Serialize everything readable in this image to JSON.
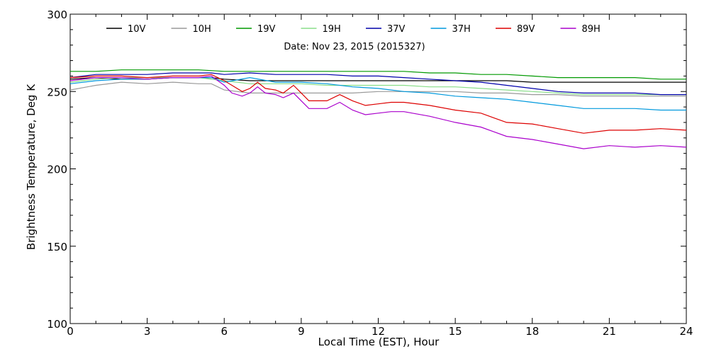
{
  "chart_data": {
    "type": "line",
    "title": "",
    "annotation": "Date: Nov 23, 2015 (2015327)",
    "xlabel": "Local Time (EST), Hour",
    "ylabel": "Brightness Temperature, Deg K",
    "xlim": [
      0,
      24
    ],
    "ylim": [
      100,
      300
    ],
    "xticks": [
      0,
      3,
      6,
      9,
      12,
      15,
      18,
      21,
      24
    ],
    "yticks": [
      100,
      150,
      200,
      250,
      300
    ],
    "grid": false,
    "legend_position": "top",
    "series": [
      {
        "name": "10V",
        "color": "#000000",
        "points": [
          [
            0,
            258
          ],
          [
            1,
            259
          ],
          [
            2,
            258
          ],
          [
            3,
            258
          ],
          [
            4,
            259
          ],
          [
            5,
            259
          ],
          [
            5.5,
            259
          ],
          [
            6,
            258
          ],
          [
            7,
            257
          ],
          [
            8,
            257
          ],
          [
            9,
            257
          ],
          [
            10,
            257
          ],
          [
            11,
            257
          ],
          [
            12,
            257
          ],
          [
            13,
            257
          ],
          [
            14,
            257
          ],
          [
            15,
            257
          ],
          [
            16,
            257
          ],
          [
            17,
            257
          ],
          [
            18,
            256
          ],
          [
            19,
            256
          ],
          [
            20,
            256
          ],
          [
            21,
            256
          ],
          [
            22,
            256
          ],
          [
            23,
            256
          ],
          [
            24,
            256
          ]
        ]
      },
      {
        "name": "10H",
        "color": "#999999",
        "points": [
          [
            0,
            251
          ],
          [
            1,
            254
          ],
          [
            2,
            256
          ],
          [
            3,
            255
          ],
          [
            4,
            256
          ],
          [
            5,
            255
          ],
          [
            5.5,
            255
          ],
          [
            6,
            251
          ],
          [
            7,
            249
          ],
          [
            8,
            249
          ],
          [
            9,
            249
          ],
          [
            10,
            249
          ],
          [
            11,
            249
          ],
          [
            12,
            250
          ],
          [
            13,
            250
          ],
          [
            14,
            250
          ],
          [
            15,
            250
          ],
          [
            16,
            249
          ],
          [
            17,
            249
          ],
          [
            18,
            248
          ],
          [
            19,
            248
          ],
          [
            20,
            247
          ],
          [
            21,
            247
          ],
          [
            22,
            247
          ],
          [
            23,
            247
          ],
          [
            24,
            247
          ]
        ]
      },
      {
        "name": "19V",
        "color": "#009900",
        "points": [
          [
            0,
            263
          ],
          [
            1,
            263
          ],
          [
            2,
            264
          ],
          [
            3,
            264
          ],
          [
            4,
            264
          ],
          [
            5,
            264
          ],
          [
            6,
            263
          ],
          [
            7,
            263
          ],
          [
            8,
            263
          ],
          [
            9,
            263
          ],
          [
            10,
            263
          ],
          [
            11,
            263
          ],
          [
            12,
            263
          ],
          [
            13,
            263
          ],
          [
            14,
            262
          ],
          [
            15,
            262
          ],
          [
            16,
            261
          ],
          [
            17,
            261
          ],
          [
            18,
            260
          ],
          [
            19,
            259
          ],
          [
            20,
            259
          ],
          [
            21,
            259
          ],
          [
            22,
            259
          ],
          [
            23,
            258
          ],
          [
            24,
            258
          ]
        ]
      },
      {
        "name": "19H",
        "color": "#88dd88",
        "points": [
          [
            0,
            256
          ],
          [
            1,
            258
          ],
          [
            2,
            259
          ],
          [
            3,
            259
          ],
          [
            4,
            259
          ],
          [
            5,
            259
          ],
          [
            6,
            257
          ],
          [
            7,
            255
          ],
          [
            8,
            255
          ],
          [
            9,
            255
          ],
          [
            10,
            254
          ],
          [
            11,
            254
          ],
          [
            12,
            254
          ],
          [
            13,
            254
          ],
          [
            14,
            253
          ],
          [
            15,
            253
          ],
          [
            16,
            252
          ],
          [
            17,
            251
          ],
          [
            18,
            250
          ],
          [
            19,
            249
          ],
          [
            20,
            248
          ],
          [
            21,
            248
          ],
          [
            22,
            248
          ],
          [
            23,
            248
          ],
          [
            24,
            248
          ]
        ]
      },
      {
        "name": "37V",
        "color": "#0000aa",
        "points": [
          [
            0,
            259
          ],
          [
            1,
            261
          ],
          [
            2,
            261
          ],
          [
            3,
            261
          ],
          [
            4,
            262
          ],
          [
            5,
            262
          ],
          [
            5.5,
            262
          ],
          [
            6,
            261
          ],
          [
            7,
            262
          ],
          [
            8,
            261
          ],
          [
            9,
            261
          ],
          [
            10,
            261
          ],
          [
            11,
            260
          ],
          [
            12,
            260
          ],
          [
            13,
            259
          ],
          [
            14,
            258
          ],
          [
            15,
            257
          ],
          [
            16,
            256
          ],
          [
            17,
            254
          ],
          [
            18,
            252
          ],
          [
            19,
            250
          ],
          [
            20,
            249
          ],
          [
            21,
            249
          ],
          [
            22,
            249
          ],
          [
            23,
            248
          ],
          [
            24,
            248
          ]
        ]
      },
      {
        "name": "37H",
        "color": "#0099dd",
        "points": [
          [
            0,
            255
          ],
          [
            1,
            257
          ],
          [
            2,
            258
          ],
          [
            3,
            258
          ],
          [
            4,
            259
          ],
          [
            5,
            259
          ],
          [
            5.5,
            259
          ],
          [
            6,
            256
          ],
          [
            7,
            259
          ],
          [
            8,
            256
          ],
          [
            9,
            256
          ],
          [
            10,
            255
          ],
          [
            11,
            253
          ],
          [
            12,
            252
          ],
          [
            13,
            250
          ],
          [
            14,
            249
          ],
          [
            15,
            247
          ],
          [
            16,
            246
          ],
          [
            17,
            245
          ],
          [
            18,
            243
          ],
          [
            19,
            241
          ],
          [
            20,
            239
          ],
          [
            21,
            239
          ],
          [
            22,
            239
          ],
          [
            23,
            238
          ],
          [
            24,
            238
          ]
        ]
      },
      {
        "name": "89V",
        "color": "#dd0000",
        "points": [
          [
            0,
            259
          ],
          [
            1,
            260
          ],
          [
            2,
            260
          ],
          [
            3,
            259
          ],
          [
            4,
            260
          ],
          [
            5,
            260
          ],
          [
            5.5,
            261
          ],
          [
            6,
            257
          ],
          [
            6.3,
            254
          ],
          [
            6.7,
            250
          ],
          [
            7,
            252
          ],
          [
            7.3,
            256
          ],
          [
            7.6,
            252
          ],
          [
            8,
            251
          ],
          [
            8.3,
            249
          ],
          [
            8.7,
            254
          ],
          [
            9,
            249
          ],
          [
            9.3,
            244
          ],
          [
            10,
            244
          ],
          [
            10.5,
            248
          ],
          [
            11,
            244
          ],
          [
            11.5,
            241
          ],
          [
            12,
            242
          ],
          [
            12.5,
            243
          ],
          [
            13,
            243
          ],
          [
            14,
            241
          ],
          [
            15,
            238
          ],
          [
            16,
            236
          ],
          [
            16.5,
            233
          ],
          [
            17,
            230
          ],
          [
            18,
            229
          ],
          [
            19,
            226
          ],
          [
            20,
            223
          ],
          [
            21,
            225
          ],
          [
            22,
            225
          ],
          [
            23,
            226
          ],
          [
            24,
            225
          ]
        ]
      },
      {
        "name": "89H",
        "color": "#aa00cc",
        "points": [
          [
            0,
            257
          ],
          [
            1,
            259
          ],
          [
            2,
            259
          ],
          [
            3,
            258
          ],
          [
            4,
            259
          ],
          [
            5,
            259
          ],
          [
            5.5,
            260
          ],
          [
            6,
            254
          ],
          [
            6.3,
            249
          ],
          [
            6.7,
            247
          ],
          [
            7,
            249
          ],
          [
            7.3,
            253
          ],
          [
            7.6,
            249
          ],
          [
            8,
            248
          ],
          [
            8.3,
            246
          ],
          [
            8.7,
            249
          ],
          [
            9,
            244
          ],
          [
            9.3,
            239
          ],
          [
            10,
            239
          ],
          [
            10.5,
            243
          ],
          [
            11,
            238
          ],
          [
            11.5,
            235
          ],
          [
            12,
            236
          ],
          [
            12.5,
            237
          ],
          [
            13,
            237
          ],
          [
            14,
            234
          ],
          [
            15,
            230
          ],
          [
            16,
            227
          ],
          [
            16.5,
            224
          ],
          [
            17,
            221
          ],
          [
            18,
            219
          ],
          [
            19,
            216
          ],
          [
            20,
            213
          ],
          [
            21,
            215
          ],
          [
            22,
            214
          ],
          [
            23,
            215
          ],
          [
            24,
            214
          ]
        ]
      }
    ]
  }
}
